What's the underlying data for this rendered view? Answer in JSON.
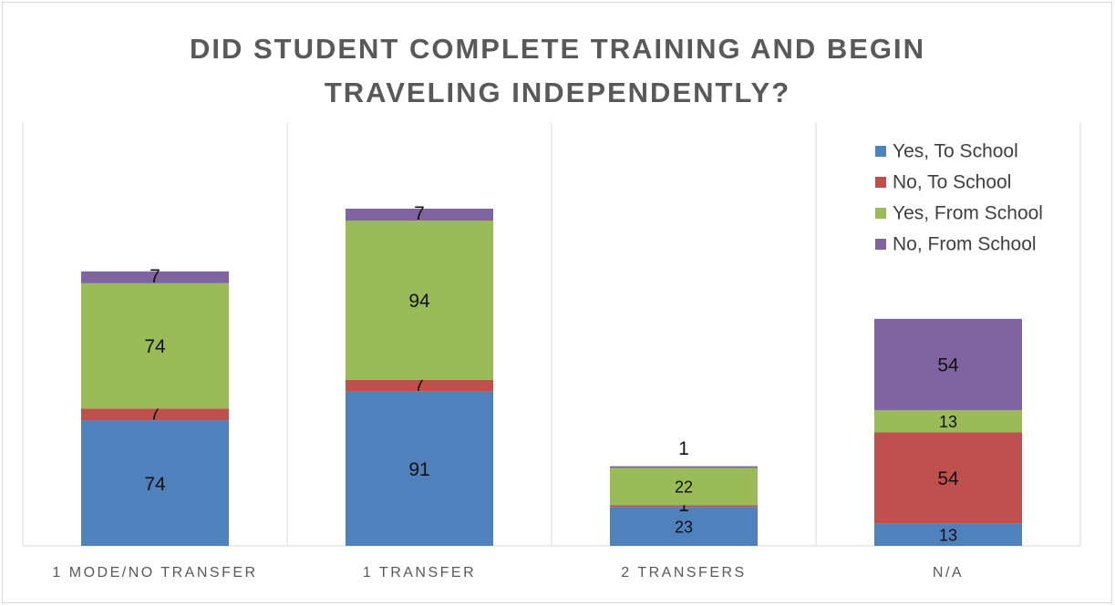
{
  "chart_data": {
    "type": "stacked_bar",
    "title": "DID STUDENT COMPLETE TRAINING AND BEGIN TRAVELING INDEPENDENTLY?",
    "categories": [
      "1 MODE/NO TRANSFER",
      "1 TRANSFER",
      "2 TRANSFERS",
      "N/A"
    ],
    "series": [
      {
        "name": "Yes, To School",
        "color": "#4f81bd",
        "values": [
          74,
          91,
          23,
          13
        ]
      },
      {
        "name": "No, To School",
        "color": "#c0504d",
        "values": [
          7,
          7,
          1,
          54
        ]
      },
      {
        "name": "Yes, From School",
        "color": "#9bbb59",
        "values": [
          74,
          94,
          22,
          13
        ]
      },
      {
        "name": "No, From School",
        "color": "#8064a2",
        "values": [
          7,
          7,
          1,
          54
        ]
      }
    ],
    "legend": "top-right",
    "data_labels": true
  }
}
